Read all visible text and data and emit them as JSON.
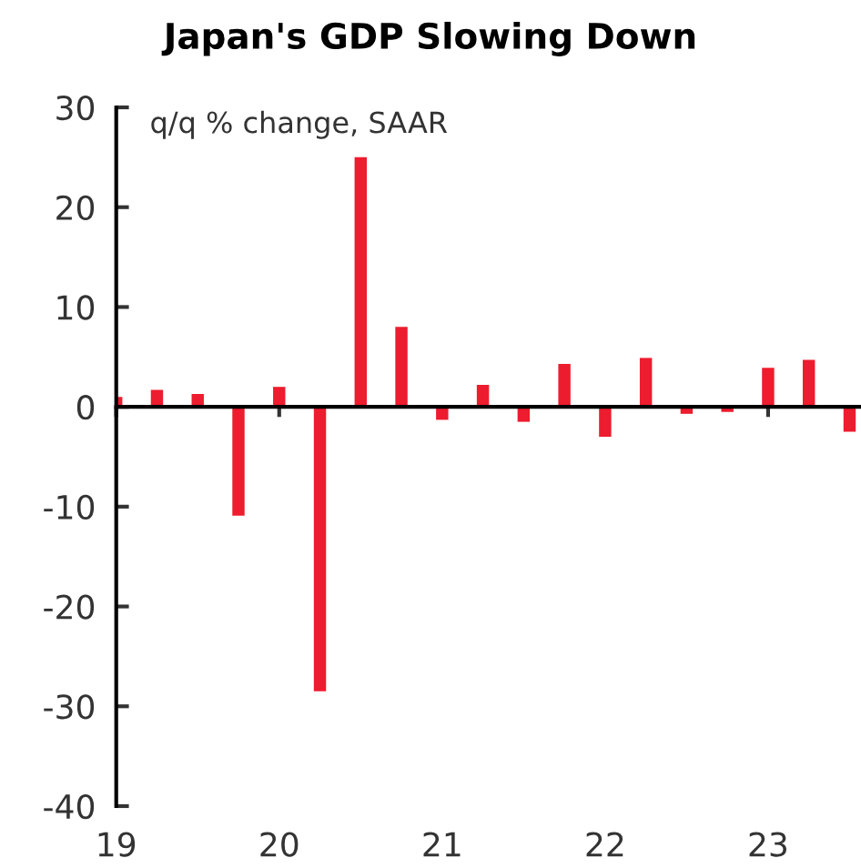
{
  "chart_data": {
    "type": "bar",
    "title": "Japan's GDP Slowing Down",
    "ylabel": "q/q % change, SAAR",
    "x": [
      19,
      19.25,
      19.5,
      19.75,
      20,
      20.25,
      20.5,
      20.75,
      21,
      21.25,
      21.5,
      21.75,
      22,
      22.25,
      22.5,
      22.75,
      23,
      23.25,
      23.5
    ],
    "values": [
      1.0,
      1.7,
      1.3,
      -10.9,
      2.0,
      -28.5,
      25.0,
      8.0,
      -1.3,
      2.2,
      -1.5,
      4.3,
      -3.0,
      4.9,
      -0.7,
      -0.5,
      3.9,
      4.7,
      -2.5
    ],
    "color": "#ed1c2e",
    "xlim": [
      19,
      23.57
    ],
    "xticks": [
      19,
      20,
      21,
      22,
      23
    ],
    "ylim": [
      -40,
      30
    ],
    "yticks": [
      -40,
      -30,
      -20,
      -10,
      0,
      10,
      20,
      30
    ],
    "legend": false
  }
}
